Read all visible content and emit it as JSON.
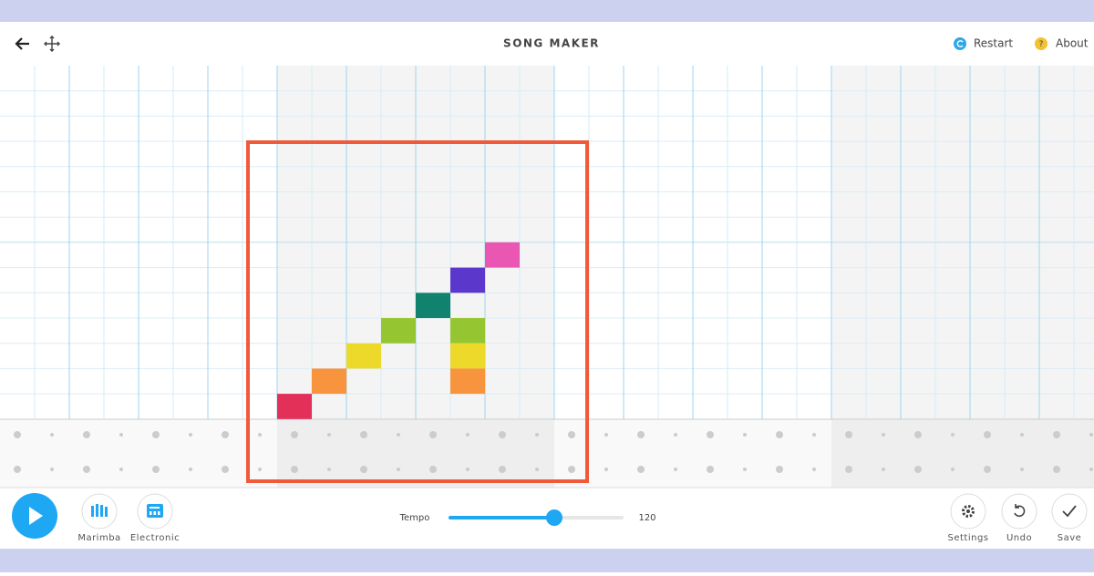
{
  "header": {
    "title": "SONG MAKER",
    "restart": "Restart",
    "about": "About"
  },
  "instruments": {
    "melody": "Marimba",
    "rhythm": "Electronic"
  },
  "tempo": {
    "label": "Tempo",
    "value": "120"
  },
  "actions": {
    "settings": "Settings",
    "undo": "Undo",
    "save": "Save"
  }
}
